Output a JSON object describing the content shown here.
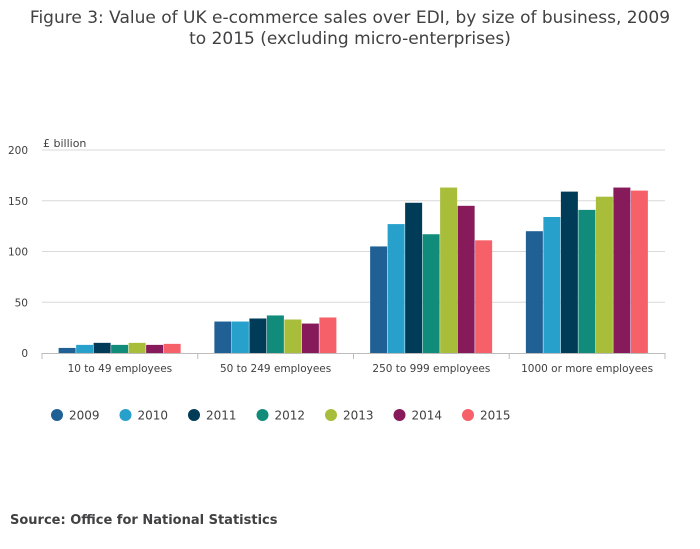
{
  "title": "Figure 3: Value of UK e-commerce sales over EDI, by size of business, 2009 to 2015 (excluding micro-enterprises)",
  "source": "Source: Office for National Statistics",
  "chart_data": {
    "type": "bar",
    "title": "Figure 3: Value of UK e-commerce sales over EDI, by size of business, 2009 to 2015 (excluding micro-enterprises)",
    "ylabel": "£ billion",
    "xlabel": "",
    "ylim": [
      0,
      200
    ],
    "yticks": [
      0,
      50,
      100,
      150,
      200
    ],
    "grid": true,
    "legend_position": "bottom",
    "categories": [
      "10 to 49 employees",
      "50 to 249 employees",
      "250 to 999 employees",
      "1000 or more employees"
    ],
    "series": [
      {
        "name": "2009",
        "color": "#206095",
        "values": [
          5,
          31,
          105,
          120
        ]
      },
      {
        "name": "2010",
        "color": "#27a0cc",
        "values": [
          8,
          31,
          127,
          134
        ]
      },
      {
        "name": "2011",
        "color": "#003c57",
        "values": [
          10,
          34,
          148,
          159
        ]
      },
      {
        "name": "2012",
        "color": "#118c7b",
        "values": [
          8,
          37,
          117,
          141
        ]
      },
      {
        "name": "2013",
        "color": "#a8bd3a",
        "values": [
          10,
          33,
          163,
          154
        ]
      },
      {
        "name": "2014",
        "color": "#871a5b",
        "values": [
          8,
          29,
          145,
          163
        ]
      },
      {
        "name": "2015",
        "color": "#f66068",
        "values": [
          9,
          35,
          111,
          160
        ]
      }
    ]
  }
}
